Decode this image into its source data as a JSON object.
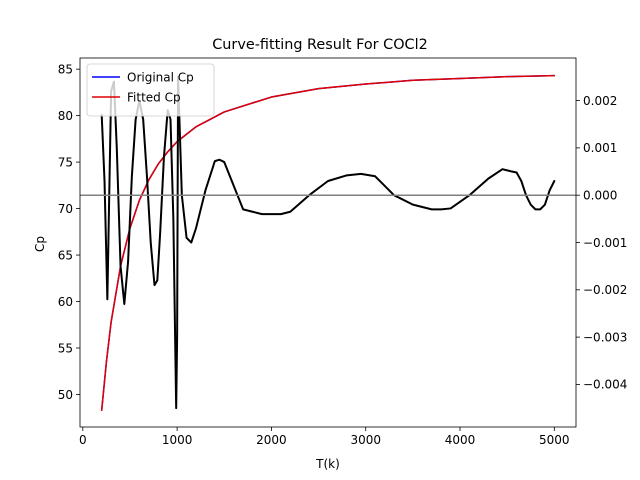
{
  "chart_data": {
    "type": "line",
    "title": "Curve-fitting Result For COCl2",
    "xlabel": "T(k)",
    "ylabel": "Cp",
    "ylabel_color": "#d62728",
    "xlim": [
      -30,
      5230
    ],
    "ylim": [
      46.5,
      86.2
    ],
    "xticks": [
      0,
      1000,
      2000,
      3000,
      4000,
      5000
    ],
    "yticks": [
      50,
      55,
      60,
      65,
      70,
      75,
      80,
      85
    ],
    "y2lim": [
      -0.0049,
      0.0029
    ],
    "y2ticks": [
      -0.004,
      -0.003,
      -0.002,
      -0.001,
      0.0,
      0.001,
      0.002
    ],
    "y2ticklabels": [
      "−0.004",
      "−0.003",
      "−0.002",
      "−0.001",
      "0.000",
      "0.001",
      "0.002"
    ],
    "legend_position": "top-left",
    "series": [
      {
        "name": "Original Cp",
        "axis": "left",
        "color": "#0000ff",
        "x": [
          200,
          250,
          300,
          400,
          500,
          600,
          700,
          800,
          900,
          1000,
          1200,
          1500,
          2000,
          2500,
          3000,
          3500,
          4000,
          4500,
          5000
        ],
        "y": [
          48.3,
          53.5,
          57.8,
          63.8,
          67.9,
          70.9,
          73.1,
          74.8,
          76.1,
          77.2,
          78.8,
          80.4,
          82.0,
          82.9,
          83.4,
          83.8,
          84.0,
          84.2,
          84.3
        ]
      },
      {
        "name": "Fitted Cp",
        "axis": "left",
        "color": "#e00000",
        "x": [
          200,
          250,
          300,
          400,
          500,
          600,
          700,
          800,
          900,
          1000,
          1200,
          1500,
          2000,
          2500,
          3000,
          3500,
          4000,
          4500,
          5000
        ],
        "y": [
          48.3,
          53.5,
          57.8,
          63.8,
          67.9,
          70.9,
          73.1,
          74.8,
          76.1,
          77.2,
          78.8,
          80.4,
          82.0,
          82.9,
          83.4,
          83.8,
          84.0,
          84.2,
          84.3
        ]
      },
      {
        "name": "",
        "axis": "right",
        "color": "#000000",
        "x": [
          200,
          230,
          260,
          300,
          330,
          360,
          400,
          440,
          480,
          520,
          560,
          600,
          640,
          680,
          720,
          760,
          790,
          820,
          860,
          900,
          930,
          960,
          990,
          1000,
          1010,
          1050,
          1100,
          1150,
          1200,
          1300,
          1400,
          1450,
          1500,
          1600,
          1700,
          1800,
          1900,
          2000,
          2100,
          2200,
          2400,
          2600,
          2800,
          2950,
          3100,
          3300,
          3500,
          3700,
          3800,
          3900,
          4100,
          4300,
          4450,
          4550,
          4600,
          4650,
          4700,
          4750,
          4800,
          4850,
          4900,
          4950,
          5000
        ],
        "y": [
          0.0017,
          0.0003,
          -0.0022,
          0.0022,
          0.0024,
          0.001,
          -0.0015,
          -0.0023,
          -0.0014,
          0.0004,
          0.0016,
          0.002,
          0.0016,
          0.0004,
          -0.001,
          -0.0019,
          -0.0018,
          -0.0008,
          0.0008,
          0.0018,
          0.0016,
          -0.0005,
          -0.0045,
          -0.003,
          0.0025,
          0.0,
          -0.0009,
          -0.001,
          -0.0007,
          0.0001,
          0.00072,
          0.00075,
          0.0007,
          0.0002,
          -0.0003,
          -0.00035,
          -0.0004,
          -0.0004,
          -0.0004,
          -0.00035,
          0.0,
          0.0003,
          0.00042,
          0.00045,
          0.0004,
          0.0,
          -0.0002,
          -0.0003,
          -0.0003,
          -0.00028,
          0.0,
          0.00035,
          0.00055,
          0.0005,
          0.00048,
          0.0003,
          0.0,
          -0.0002,
          -0.0003,
          -0.0003,
          -0.0002,
          0.0001,
          0.0003
        ]
      },
      {
        "name": "",
        "axis": "right",
        "color": "#808080",
        "x": [
          -30,
          5230
        ],
        "y": [
          0.0,
          0.0
        ]
      }
    ]
  }
}
